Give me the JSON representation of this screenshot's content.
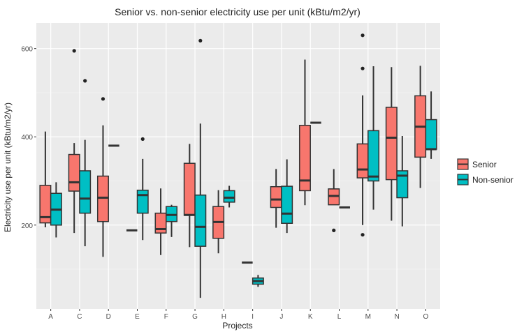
{
  "chart_data": {
    "type": "boxplot",
    "title": "Senior vs. non-senior electricity use per unit (kBtu/m2/yr)",
    "xlabel": "Projects",
    "ylabel": "Electricity use per unit (kBtu/m2/yr)",
    "ylim": [
      10,
      658
    ],
    "yticks": [
      200,
      400,
      600
    ],
    "grid": true,
    "legend_placement": "right",
    "categories": [
      "A",
      "C",
      "D",
      "E",
      "F",
      "G",
      "H",
      "I",
      "J",
      "K",
      "L",
      "M",
      "N",
      "O"
    ],
    "series": [
      {
        "name": "Senior",
        "color": "#F8766D",
        "boxes": [
          {
            "lo": 195,
            "q1": 205,
            "med": 218,
            "q3": 290,
            "hi": 412,
            "out": []
          },
          {
            "lo": 182,
            "q1": 277,
            "med": 297,
            "q3": 360,
            "hi": 386,
            "out": [
              595
            ]
          },
          {
            "lo": 128,
            "q1": 208,
            "med": 262,
            "q3": 311,
            "hi": 426,
            "out": [
              486
            ]
          },
          {
            "lo": 188,
            "q1": 188,
            "med": 188,
            "q3": 188,
            "hi": 188,
            "out": []
          },
          {
            "lo": 132,
            "q1": 182,
            "med": 191,
            "q3": 227,
            "hi": 283,
            "out": []
          },
          {
            "lo": 150,
            "q1": 222,
            "med": 223,
            "q3": 340,
            "hi": 384,
            "out": []
          },
          {
            "lo": 136,
            "q1": 170,
            "med": 207,
            "q3": 242,
            "hi": 279,
            "out": []
          },
          {
            "lo": 115,
            "q1": 115,
            "med": 115,
            "q3": 115,
            "hi": 115,
            "out": []
          },
          {
            "lo": 194,
            "q1": 240,
            "med": 258,
            "q3": 287,
            "hi": 327,
            "out": []
          },
          {
            "lo": 245,
            "q1": 278,
            "med": 301,
            "q3": 426,
            "hi": 575,
            "out": []
          },
          {
            "lo": 246,
            "q1": 246,
            "med": 266,
            "q3": 282,
            "hi": 327,
            "out": [
              188
            ]
          },
          {
            "lo": 200,
            "q1": 307,
            "med": 326,
            "q3": 384,
            "hi": 494,
            "out": [
              630,
              555,
              178
            ]
          },
          {
            "lo": 210,
            "q1": 303,
            "med": 398,
            "q3": 467,
            "hi": 558,
            "out": []
          },
          {
            "lo": 284,
            "q1": 354,
            "med": 423,
            "q3": 493,
            "hi": 561,
            "out": []
          }
        ]
      },
      {
        "name": "Non-senior",
        "color": "#00BFC4",
        "boxes": [
          {
            "lo": 172,
            "q1": 200,
            "med": 235,
            "q3": 272,
            "hi": 297,
            "out": []
          },
          {
            "lo": 152,
            "q1": 227,
            "med": 260,
            "q3": 323,
            "hi": 393,
            "out": [
              527
            ]
          },
          {
            "lo": 380,
            "q1": 380,
            "med": 380,
            "q3": 380,
            "hi": 380,
            "out": []
          },
          {
            "lo": 166,
            "q1": 227,
            "med": 268,
            "q3": 279,
            "hi": 350,
            "out": [
              395
            ]
          },
          {
            "lo": 173,
            "q1": 208,
            "med": 223,
            "q3": 242,
            "hi": 246,
            "out": []
          },
          {
            "lo": 35,
            "q1": 152,
            "med": 196,
            "q3": 268,
            "hi": 430,
            "out": [
              618
            ]
          },
          {
            "lo": 240,
            "q1": 252,
            "med": 262,
            "q3": 278,
            "hi": 289,
            "out": []
          },
          {
            "lo": 60,
            "q1": 66,
            "med": 73,
            "q3": 80,
            "hi": 87,
            "out": []
          },
          {
            "lo": 182,
            "q1": 204,
            "med": 226,
            "q3": 288,
            "hi": 349,
            "out": []
          },
          {
            "lo": 432,
            "q1": 432,
            "med": 432,
            "q3": 432,
            "hi": 432,
            "out": []
          },
          {
            "lo": 240,
            "q1": 240,
            "med": 240,
            "q3": 240,
            "hi": 240,
            "out": []
          },
          {
            "lo": 235,
            "q1": 300,
            "med": 310,
            "q3": 414,
            "hi": 560,
            "out": []
          },
          {
            "lo": 197,
            "q1": 262,
            "med": 312,
            "q3": 323,
            "hi": 402,
            "out": []
          },
          {
            "lo": 350,
            "q1": 372,
            "med": 372,
            "q3": 439,
            "hi": 503,
            "out": []
          }
        ]
      }
    ]
  }
}
